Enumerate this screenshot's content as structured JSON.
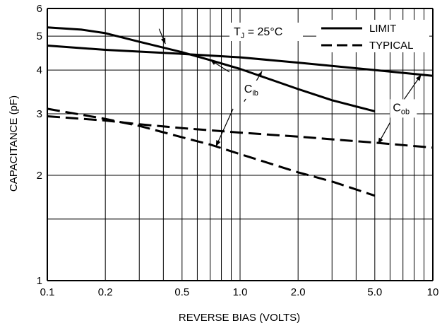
{
  "chart_data": {
    "type": "line",
    "title": "",
    "xlabel": "REVERSE BIAS (VOLTS)",
    "ylabel": "CAPACITANCE (pF)",
    "x_scale": "log",
    "y_scale": "log",
    "xlim": [
      0.1,
      10
    ],
    "ylim": [
      1,
      6
    ],
    "grid": true,
    "x_ticks": [
      {
        "value": 0.1,
        "label": "0.1"
      },
      {
        "value": 0.2,
        "label": "0.2"
      },
      {
        "value": 0.5,
        "label": "0.5"
      },
      {
        "value": 1.0,
        "label": "1.0"
      },
      {
        "value": 2.0,
        "label": "2.0"
      },
      {
        "value": 5.0,
        "label": "5.0"
      },
      {
        "value": 10,
        "label": "10"
      }
    ],
    "y_ticks": [
      {
        "value": 1,
        "label": "1"
      },
      {
        "value": 2,
        "label": "2"
      },
      {
        "value": 3,
        "label": "3"
      },
      {
        "value": 4,
        "label": "4"
      },
      {
        "value": 5,
        "label": "5"
      },
      {
        "value": 6,
        "label": "6"
      }
    ],
    "legend": {
      "placement": "top-right",
      "entries": [
        {
          "label": "LIMIT",
          "style": "solid"
        },
        {
          "label": "TYPICAL",
          "style": "dashed"
        }
      ]
    },
    "annotation": {
      "main": "T",
      "sub": "J",
      "rest": " = 25°C"
    },
    "series": [
      {
        "group": "C_ib",
        "style": "solid",
        "x": [
          0.1,
          0.15,
          0.2,
          0.3,
          0.5,
          0.7,
          1.0,
          2.0,
          3.0,
          5.0
        ],
        "y": [
          5.3,
          5.22,
          5.1,
          4.82,
          4.5,
          4.27,
          4.03,
          3.53,
          3.28,
          3.05
        ]
      },
      {
        "group": "C_ob",
        "style": "solid",
        "x": [
          0.1,
          0.2,
          0.5,
          1.0,
          2.0,
          5.0,
          10
        ],
        "y": [
          4.7,
          4.57,
          4.45,
          4.35,
          4.2,
          4.0,
          3.85
        ]
      },
      {
        "group": "C_ib",
        "style": "dashed",
        "x": [
          0.1,
          0.2,
          0.3,
          0.5,
          0.7,
          1.0,
          2.0,
          3.0,
          5.0
        ],
        "y": [
          3.1,
          2.9,
          2.77,
          2.57,
          2.45,
          2.3,
          2.04,
          1.92,
          1.75
        ]
      },
      {
        "group": "C_ob",
        "style": "dashed",
        "x": [
          0.1,
          0.2,
          0.3,
          0.5,
          1.0,
          2.0,
          5.0,
          10
        ],
        "y": [
          2.95,
          2.87,
          2.8,
          2.73,
          2.65,
          2.58,
          2.48,
          2.4
        ]
      }
    ],
    "labels": [
      {
        "main": "C",
        "sub": "ib",
        "x": 1.05,
        "y": 3.45
      },
      {
        "main": "C",
        "sub": "ob",
        "x": 6.2,
        "y": 3.05
      }
    ],
    "arrows": [
      {
        "from": [
          0.88,
          3.95
        ],
        "to": [
          0.7,
          4.28
        ]
      },
      {
        "from": [
          1.05,
          3.25
        ],
        "to": [
          1.3,
          3.97
        ]
      },
      {
        "from": [
          0.92,
          3.1
        ],
        "to": [
          0.75,
          2.42
        ]
      },
      {
        "from": [
          6.3,
          3.0
        ],
        "to": [
          8.7,
          3.88
        ]
      },
      {
        "from": [
          6.0,
          2.83
        ],
        "to": [
          5.2,
          2.46
        ]
      },
      {
        "from": [
          0.38,
          5.25
        ],
        "to": [
          0.41,
          4.75
        ]
      }
    ]
  }
}
